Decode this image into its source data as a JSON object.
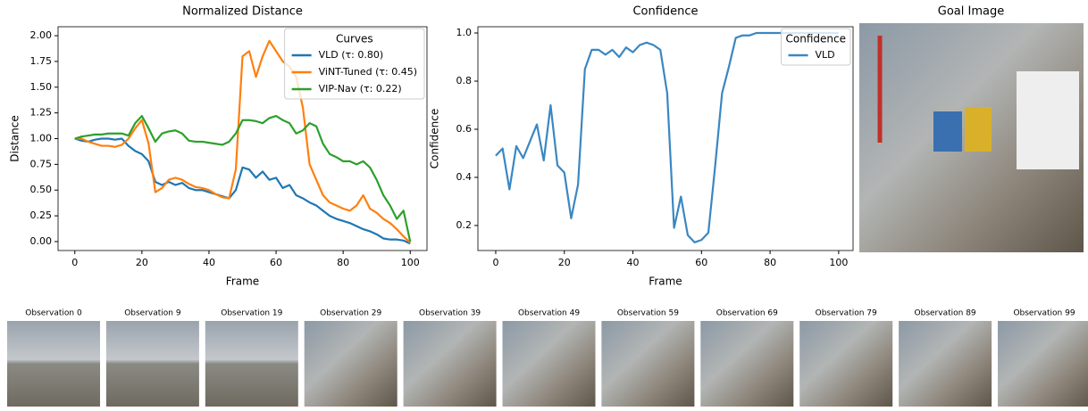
{
  "chart_data": [
    {
      "type": "line",
      "title": "Normalized Distance",
      "x_label": "Frame",
      "y_label": "Distance",
      "x": [
        0,
        2,
        4,
        6,
        8,
        10,
        12,
        14,
        16,
        18,
        20,
        22,
        24,
        26,
        28,
        30,
        32,
        34,
        36,
        38,
        40,
        42,
        44,
        46,
        48,
        50,
        52,
        54,
        56,
        58,
        60,
        62,
        64,
        66,
        68,
        70,
        72,
        74,
        76,
        78,
        80,
        82,
        84,
        86,
        88,
        90,
        92,
        94,
        96,
        98,
        100
      ],
      "series": [
        {
          "name": "VLD (τ: 0.80)",
          "color": "#1f77b4",
          "values": [
            1.0,
            0.98,
            0.97,
            0.99,
            1.0,
            1.0,
            0.99,
            1.0,
            0.93,
            0.88,
            0.85,
            0.78,
            0.58,
            0.55,
            0.58,
            0.55,
            0.57,
            0.52,
            0.5,
            0.5,
            0.48,
            0.46,
            0.44,
            0.42,
            0.5,
            0.72,
            0.7,
            0.62,
            0.68,
            0.6,
            0.62,
            0.52,
            0.55,
            0.45,
            0.42,
            0.38,
            0.35,
            0.3,
            0.25,
            0.22,
            0.2,
            0.18,
            0.15,
            0.12,
            0.1,
            0.07,
            0.03,
            0.02,
            0.02,
            0.01,
            -0.02
          ]
        },
        {
          "name": "ViNT-Tuned (τ: 0.45)",
          "color": "#ff7f0e",
          "values": [
            1.0,
            1.0,
            0.97,
            0.95,
            0.93,
            0.93,
            0.92,
            0.94,
            1.0,
            1.1,
            1.18,
            0.95,
            0.48,
            0.52,
            0.6,
            0.62,
            0.6,
            0.56,
            0.53,
            0.52,
            0.5,
            0.46,
            0.43,
            0.42,
            0.7,
            1.8,
            1.85,
            1.6,
            1.8,
            1.95,
            1.85,
            1.75,
            1.7,
            1.6,
            1.3,
            0.75,
            0.6,
            0.45,
            0.38,
            0.35,
            0.32,
            0.3,
            0.35,
            0.45,
            0.32,
            0.28,
            0.22,
            0.18,
            0.12,
            0.05,
            -0.01
          ]
        },
        {
          "name": "VIP-Nav (τ: 0.22)",
          "color": "#2ca02c",
          "values": [
            1.0,
            1.02,
            1.03,
            1.04,
            1.04,
            1.05,
            1.05,
            1.05,
            1.03,
            1.15,
            1.22,
            1.1,
            0.97,
            1.05,
            1.07,
            1.08,
            1.05,
            0.98,
            0.97,
            0.97,
            0.96,
            0.95,
            0.94,
            0.97,
            1.05,
            1.18,
            1.18,
            1.17,
            1.15,
            1.2,
            1.22,
            1.18,
            1.15,
            1.05,
            1.08,
            1.15,
            1.12,
            0.95,
            0.85,
            0.82,
            0.78,
            0.78,
            0.75,
            0.78,
            0.72,
            0.6,
            0.45,
            0.35,
            0.22,
            0.3,
            0.0
          ]
        }
      ],
      "xlim": [
        -5,
        105
      ],
      "ylim": [
        -0.087,
        2.087
      ],
      "xticks": [
        0,
        20,
        40,
        60,
        80,
        100
      ],
      "yticks": [
        {
          "value": 0,
          "label": "0.00"
        },
        {
          "value": 0.25,
          "label": "0.25"
        },
        {
          "value": 0.5,
          "label": "0.50"
        },
        {
          "value": 0.75,
          "label": "0.75"
        },
        {
          "value": 1,
          "label": "1.00"
        },
        {
          "value": 1.25,
          "label": "1.25"
        },
        {
          "value": 1.5,
          "label": "1.50"
        },
        {
          "value": 1.75,
          "label": "1.75"
        },
        {
          "value": 2,
          "label": "2.00"
        }
      ],
      "legend_title": "Curves",
      "legend": "upper right"
    },
    {
      "type": "line",
      "title": "Confidence",
      "x_label": "Frame",
      "y_label": "Confidence",
      "x": [
        0,
        2,
        4,
        6,
        8,
        10,
        12,
        14,
        16,
        18,
        20,
        22,
        24,
        26,
        28,
        30,
        32,
        34,
        36,
        38,
        40,
        42,
        44,
        46,
        48,
        50,
        52,
        54,
        56,
        58,
        60,
        62,
        64,
        66,
        68,
        70,
        72,
        74,
        76,
        78,
        80,
        82,
        84,
        86,
        88,
        90,
        92,
        94,
        96,
        98,
        100
      ],
      "series": [
        {
          "name": "VLD",
          "color": "#3a87c2",
          "values": [
            0.49,
            0.52,
            0.35,
            0.53,
            0.48,
            0.55,
            0.62,
            0.47,
            0.7,
            0.45,
            0.42,
            0.23,
            0.37,
            0.85,
            0.93,
            0.93,
            0.91,
            0.93,
            0.9,
            0.94,
            0.92,
            0.95,
            0.96,
            0.95,
            0.93,
            0.75,
            0.19,
            0.32,
            0.16,
            0.13,
            0.14,
            0.17,
            0.45,
            0.75,
            0.86,
            0.98,
            0.99,
            0.99,
            1.0,
            1.0,
            1.0,
            1.0,
            1.0,
            1.0,
            1.0,
            1.0,
            1.0,
            1.0,
            1.0,
            1.0,
            1.0
          ]
        }
      ],
      "xlim": [
        -5.2,
        104.2
      ],
      "ylim": [
        0.096,
        1.026
      ],
      "xticks": [
        0,
        20,
        40,
        60,
        80,
        100
      ],
      "yticks": [
        0.2,
        0.4,
        0.6,
        0.8,
        {
          "value": 1,
          "label": "1.0"
        }
      ],
      "legend_title": "Confidence",
      "legend": "upper right"
    }
  ],
  "goal_image": {
    "title": "Goal Image"
  },
  "observations": [
    "Observation 0",
    "Observation 9",
    "Observation 19",
    "Observation 29",
    "Observation 39",
    "Observation 49",
    "Observation 59",
    "Observation 69",
    "Observation 79",
    "Observation 89",
    "Observation 99"
  ]
}
